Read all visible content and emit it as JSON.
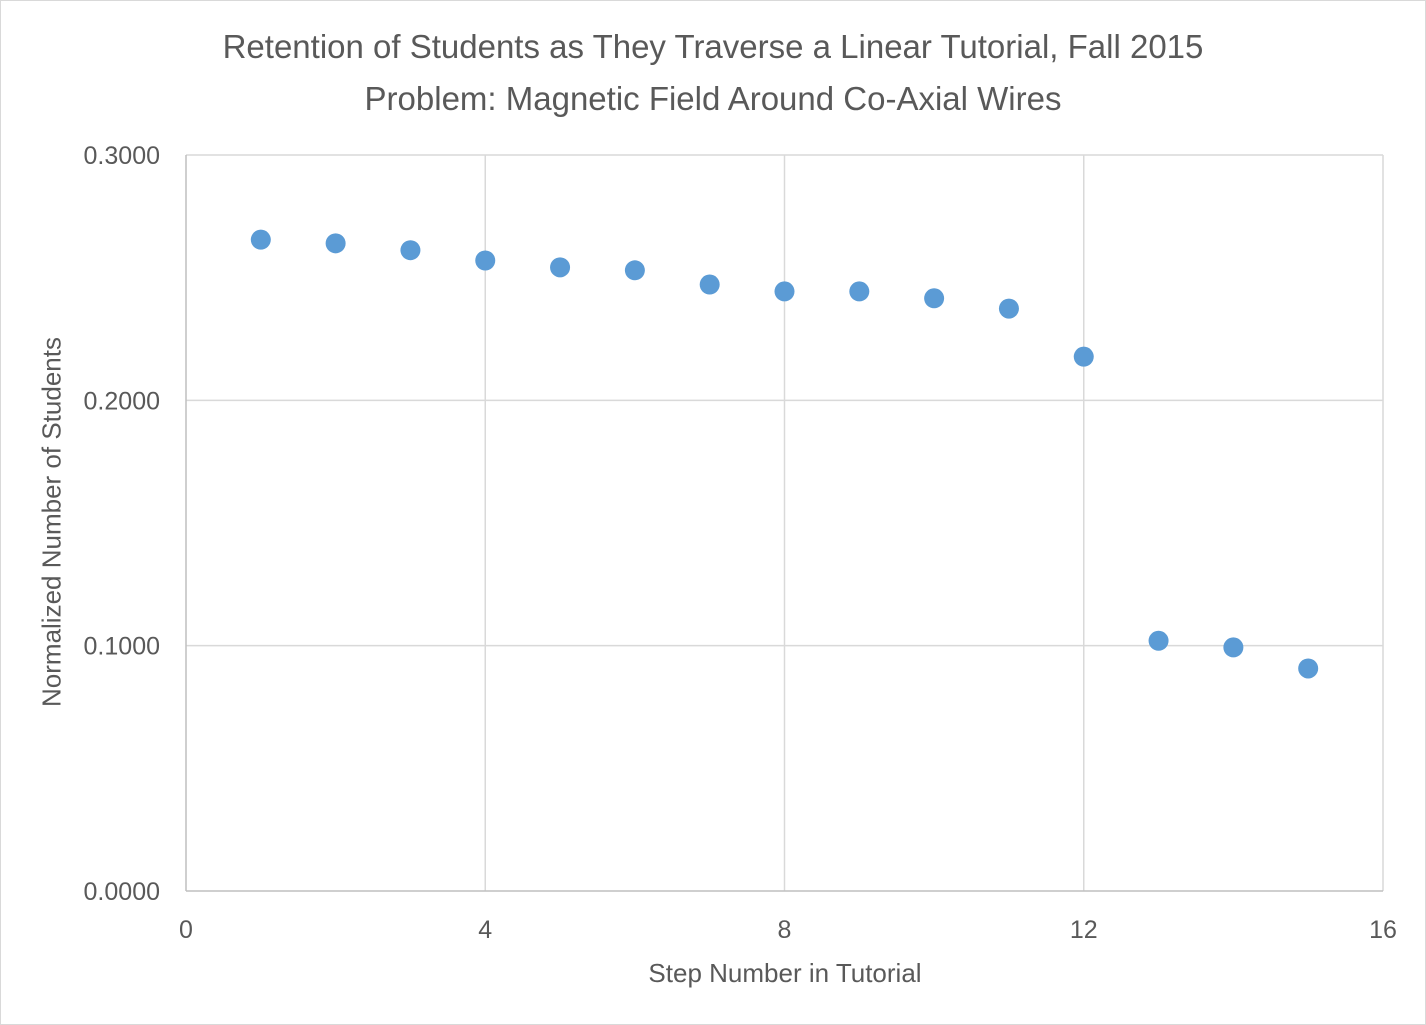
{
  "chart_data": {
    "type": "scatter",
    "title_lines": [
      "Retention of Students as They Traverse a Linear Tutorial, Fall 2015",
      "Problem: Magnetic Field Around Co-Axial Wires"
    ],
    "xlabel": "Step Number in Tutorial",
    "ylabel": "Normalized Number of Students",
    "xlim": [
      0,
      16
    ],
    "ylim": [
      0,
      0.3
    ],
    "x_ticks": [
      0,
      4,
      8,
      12,
      16
    ],
    "x_tick_labels": [
      "0",
      "4",
      "8",
      "12",
      "16"
    ],
    "y_ticks": [
      0,
      0.1,
      0.2,
      0.3
    ],
    "y_tick_labels": [
      "0.0000",
      "0.1000",
      "0.2000",
      "0.3000"
    ],
    "grid": true,
    "series": [
      {
        "color": "#5b9bd5",
        "points": [
          {
            "x": 1,
            "y": 0.2655
          },
          {
            "x": 2,
            "y": 0.264
          },
          {
            "x": 3,
            "y": 0.2612
          },
          {
            "x": 4,
            "y": 0.257
          },
          {
            "x": 5,
            "y": 0.2542
          },
          {
            "x": 6,
            "y": 0.253
          },
          {
            "x": 7,
            "y": 0.2472
          },
          {
            "x": 8,
            "y": 0.2444
          },
          {
            "x": 9,
            "y": 0.2444
          },
          {
            "x": 10,
            "y": 0.2416
          },
          {
            "x": 11,
            "y": 0.2374
          },
          {
            "x": 12,
            "y": 0.2178
          },
          {
            "x": 13,
            "y": 0.102
          },
          {
            "x": 14,
            "y": 0.0993
          },
          {
            "x": 15,
            "y": 0.0907
          }
        ]
      }
    ]
  }
}
